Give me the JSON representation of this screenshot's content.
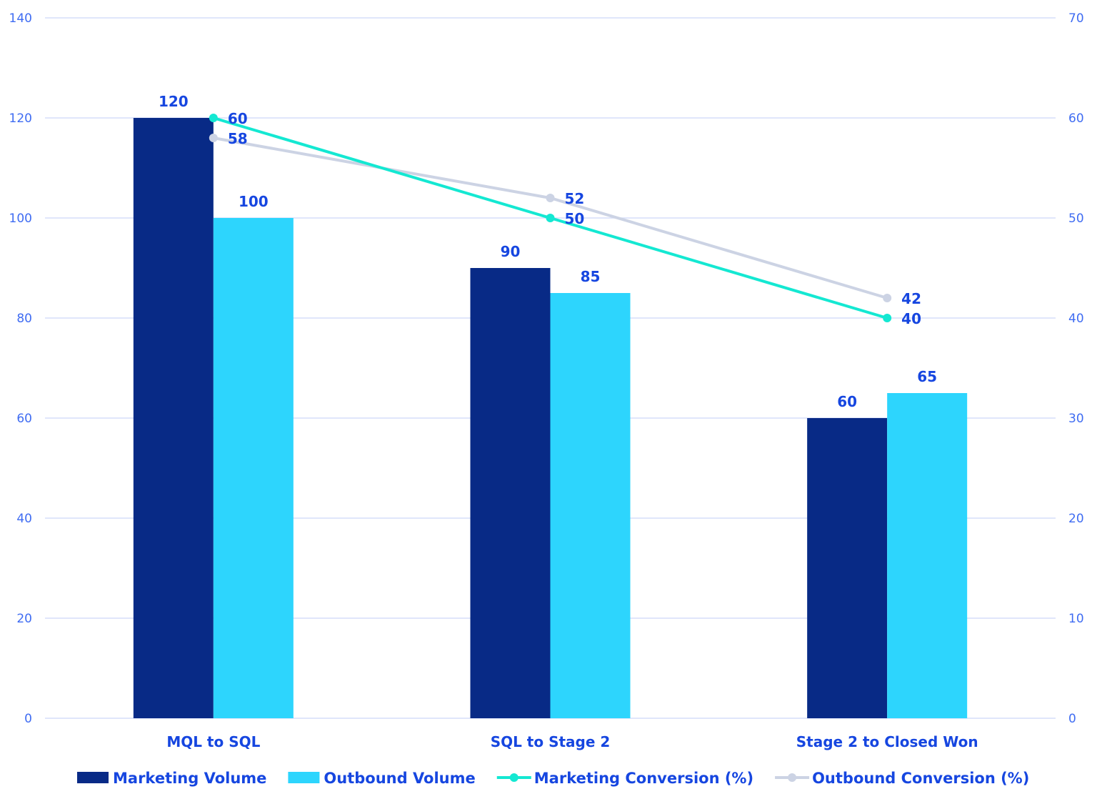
{
  "chart_data": {
    "type": "bar",
    "categories": [
      "MQL to SQL",
      "SQL to Stage 2",
      "Stage 2 to Closed Won"
    ],
    "series": [
      {
        "name": "Marketing Volume",
        "type": "bar",
        "axis": "left",
        "values": [
          120,
          90,
          60
        ],
        "color": "#082a86"
      },
      {
        "name": "Outbound Volume",
        "type": "bar",
        "axis": "left",
        "values": [
          100,
          85,
          65
        ],
        "color": "#2dd5fd"
      },
      {
        "name": "Marketing Conversion (%)",
        "type": "line",
        "axis": "right",
        "values": [
          60,
          50,
          40
        ],
        "color": "#14e8d2"
      },
      {
        "name": "Outbound Conversion (%)",
        "type": "line",
        "axis": "right",
        "values": [
          58,
          52,
          42
        ],
        "color": "#ccd3e4"
      }
    ],
    "ylim": [
      0,
      140
    ],
    "yticks": [
      0,
      20,
      40,
      60,
      80,
      100,
      120,
      140
    ],
    "y2lim": [
      0,
      70
    ],
    "y2ticks": [
      0,
      10,
      20,
      30,
      40,
      50,
      60,
      70
    ],
    "grid": true,
    "legend_position": "bottom",
    "data_labels": true,
    "gridline_color": "#d6defa",
    "text_color": "#1646e0"
  }
}
